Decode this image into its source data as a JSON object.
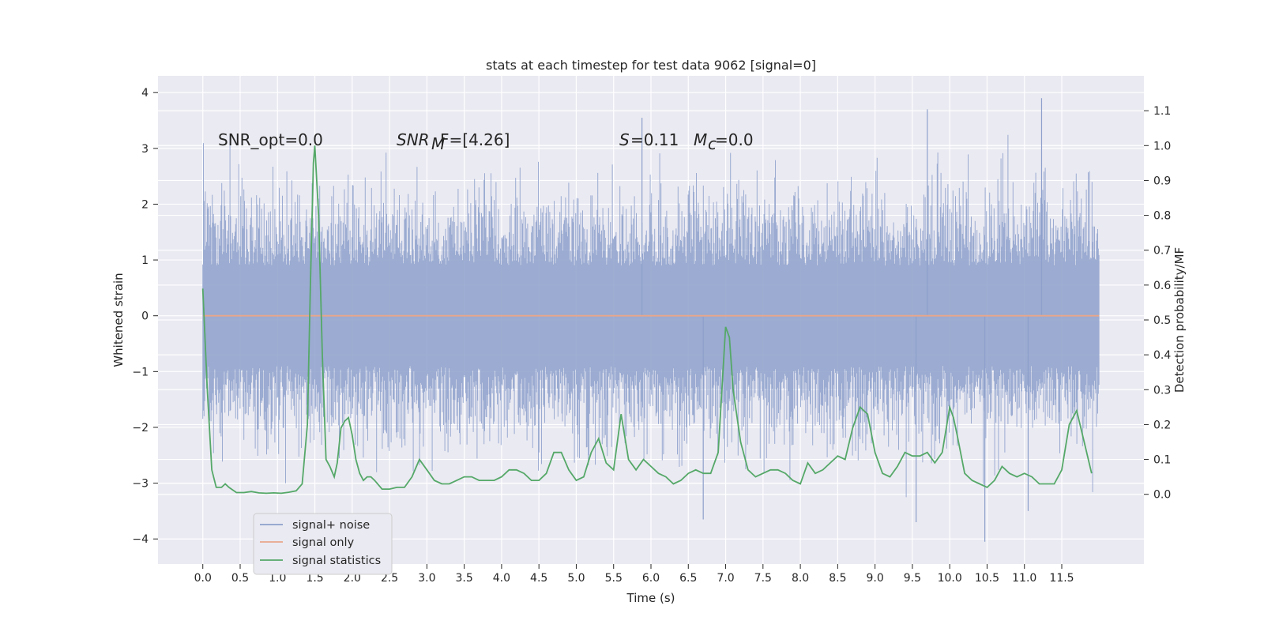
{
  "chart_data": {
    "type": "line",
    "title": "stats at each timestep for test data 9062 [signal=0]",
    "xlabel": "Time (s)",
    "ylabel_left": "Whitened strain",
    "ylabel_right": "Detection probability/MF",
    "xlim": [
      -0.6,
      12.6
    ],
    "ylim_left": [
      -4.45,
      4.3
    ],
    "ylim_right": [
      -0.2,
      1.2
    ],
    "x_ticks": [
      "0.0",
      "0.5",
      "1.0",
      "1.5",
      "2.0",
      "2.5",
      "3.0",
      "3.5",
      "4.0",
      "4.5",
      "5.0",
      "5.5",
      "6.0",
      "6.5",
      "7.0",
      "7.5",
      "8.0",
      "8.5",
      "9.0",
      "9.5",
      "10.0",
      "10.5",
      "11.0",
      "11.5"
    ],
    "y_ticks_left": [
      "4",
      "3",
      "2",
      "1",
      "0",
      "−1",
      "−2",
      "−3",
      "−4"
    ],
    "y_ticks_right": [
      "1.1",
      "1.0",
      "0.9",
      "0.8",
      "0.7",
      "0.6",
      "0.5",
      "0.4",
      "0.3",
      "0.2",
      "0.1",
      "0.0"
    ],
    "grid": true,
    "legend_position": "lower-left",
    "annotations": {
      "snr_opt": "SNR_opt=0.0",
      "snr_mf_main": "SNR",
      "snr_mf_sub": "M",
      "snr_mf_rest": "F=[4.26]",
      "s_main": "S",
      "s_rest": "=0.11",
      "mc_main": "M",
      "mc_sub": "c",
      "mc_rest": "=0.0"
    },
    "series": [
      {
        "name": "signal+ noise",
        "axis": "left",
        "color": "#8da0cb",
        "style": "dense-noise",
        "x_range": [
          0.0,
          12.0
        ],
        "typical_range": [
          -2.0,
          2.0
        ],
        "peaks": [
          {
            "x": 11.23,
            "y": 3.9
          },
          {
            "x": 9.7,
            "y": 3.7
          },
          {
            "x": 5.88,
            "y": 3.55
          },
          {
            "x": 11.05,
            "y": -3.5
          },
          {
            "x": 10.47,
            "y": -4.05
          },
          {
            "x": 6.7,
            "y": -3.65
          },
          {
            "x": 9.55,
            "y": -3.7
          }
        ]
      },
      {
        "name": "signal only",
        "axis": "left",
        "color": "#e9a68a",
        "x": [
          0.0,
          12.0
        ],
        "y": [
          0.0,
          0.0
        ]
      },
      {
        "name": "signal statistics",
        "axis": "right",
        "color": "#55a868",
        "x": [
          0.0,
          0.06,
          0.12,
          0.18,
          0.25,
          0.3,
          0.35,
          0.45,
          0.55,
          0.65,
          0.75,
          0.85,
          0.95,
          1.05,
          1.15,
          1.25,
          1.33,
          1.4,
          1.44,
          1.48,
          1.5,
          1.55,
          1.6,
          1.65,
          1.7,
          1.76,
          1.8,
          1.85,
          1.9,
          1.95,
          2.0,
          2.05,
          2.1,
          2.15,
          2.2,
          2.25,
          2.3,
          2.4,
          2.5,
          2.6,
          2.7,
          2.8,
          2.9,
          3.0,
          3.1,
          3.2,
          3.3,
          3.4,
          3.5,
          3.6,
          3.7,
          3.8,
          3.9,
          4.0,
          4.1,
          4.2,
          4.3,
          4.4,
          4.5,
          4.6,
          4.7,
          4.8,
          4.9,
          5.0,
          5.1,
          5.2,
          5.3,
          5.4,
          5.5,
          5.6,
          5.7,
          5.8,
          5.9,
          6.0,
          6.1,
          6.2,
          6.3,
          6.4,
          6.5,
          6.6,
          6.7,
          6.8,
          6.9,
          7.0,
          7.05,
          7.1,
          7.2,
          7.3,
          7.4,
          7.5,
          7.6,
          7.7,
          7.8,
          7.9,
          8.0,
          8.1,
          8.2,
          8.3,
          8.4,
          8.5,
          8.6,
          8.7,
          8.8,
          8.9,
          9.0,
          9.1,
          9.2,
          9.3,
          9.4,
          9.5,
          9.6,
          9.7,
          9.8,
          9.9,
          10.0,
          10.05,
          10.1,
          10.2,
          10.3,
          10.4,
          10.5,
          10.6,
          10.7,
          10.8,
          10.9,
          11.0,
          11.1,
          11.2,
          11.3,
          11.4,
          11.5,
          11.6,
          11.7,
          11.8,
          11.9
        ],
        "y": [
          0.59,
          0.3,
          0.07,
          0.02,
          0.02,
          0.03,
          0.02,
          0.005,
          0.005,
          0.008,
          0.004,
          0.003,
          0.004,
          0.003,
          0.006,
          0.01,
          0.03,
          0.2,
          0.6,
          0.95,
          1.0,
          0.8,
          0.4,
          0.1,
          0.08,
          0.05,
          0.09,
          0.19,
          0.21,
          0.22,
          0.17,
          0.1,
          0.06,
          0.04,
          0.05,
          0.05,
          0.04,
          0.015,
          0.015,
          0.02,
          0.02,
          0.05,
          0.1,
          0.07,
          0.04,
          0.03,
          0.03,
          0.04,
          0.05,
          0.05,
          0.04,
          0.04,
          0.04,
          0.05,
          0.07,
          0.07,
          0.06,
          0.04,
          0.04,
          0.06,
          0.12,
          0.12,
          0.07,
          0.04,
          0.05,
          0.12,
          0.16,
          0.09,
          0.07,
          0.23,
          0.1,
          0.07,
          0.1,
          0.08,
          0.06,
          0.05,
          0.03,
          0.04,
          0.06,
          0.07,
          0.06,
          0.06,
          0.12,
          0.48,
          0.45,
          0.3,
          0.15,
          0.07,
          0.05,
          0.06,
          0.07,
          0.07,
          0.06,
          0.04,
          0.03,
          0.09,
          0.06,
          0.07,
          0.09,
          0.11,
          0.1,
          0.19,
          0.25,
          0.23,
          0.12,
          0.06,
          0.05,
          0.08,
          0.12,
          0.11,
          0.11,
          0.12,
          0.09,
          0.12,
          0.25,
          0.22,
          0.17,
          0.06,
          0.04,
          0.03,
          0.02,
          0.04,
          0.08,
          0.06,
          0.05,
          0.06,
          0.05,
          0.03,
          0.03,
          0.03,
          0.07,
          0.2,
          0.24,
          0.15,
          0.06
        ]
      }
    ]
  }
}
